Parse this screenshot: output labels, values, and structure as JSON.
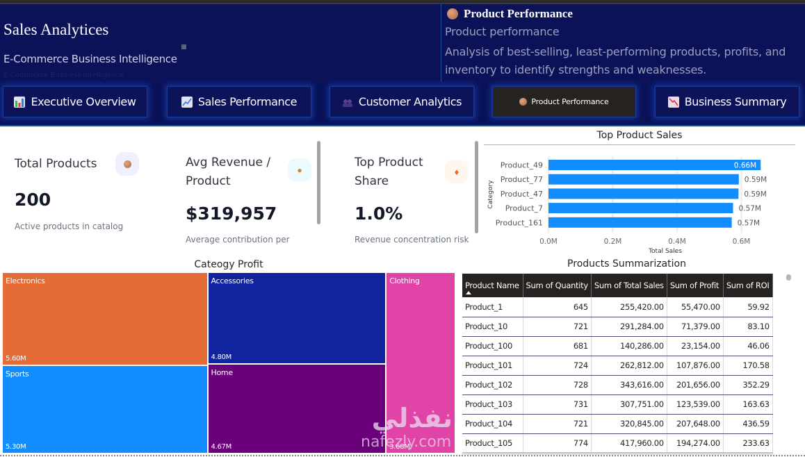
{
  "header": {
    "title": "Sales Analytices",
    "subtitle": "E-Commerce Business Intelligence",
    "ghost_subtitle": "E-Commerce Business Intelligence",
    "page_info": {
      "icon": "package-icon",
      "title": "Product Performance",
      "subtitle": "Product performance",
      "description": "Analysis of best-selling, least-performing products, profits, and inventory to identify strengths and weaknesses."
    }
  },
  "nav": {
    "tabs": [
      {
        "label": "Executive Overview",
        "icon": "bar-chart-icon",
        "active": false
      },
      {
        "label": "Sales Performance",
        "icon": "trend-up-icon",
        "active": false
      },
      {
        "label": "Customer Analytics",
        "icon": "users-icon",
        "active": false
      },
      {
        "label": "Product Performance",
        "icon": "package-icon",
        "active": true
      },
      {
        "label": "Business Summary",
        "icon": "trend-down-icon",
        "active": false
      }
    ]
  },
  "kpis": [
    {
      "label": "Total Products",
      "value": "200",
      "caption": "Active products in catalog",
      "icon": "package-icon"
    },
    {
      "label": "Avg Revenue / Product",
      "value": "$319,957",
      "caption": "Average contribution per",
      "icon": "money-bag-icon"
    },
    {
      "label": "Top Product Share",
      "value": "1.0%",
      "caption": "Revenue concentration risk",
      "icon": "fire-icon"
    }
  ],
  "chart_data": [
    {
      "type": "bar",
      "orientation": "horizontal",
      "title": "Top Product Sales",
      "xlabel": "Total Sales",
      "ylabel": "Category",
      "categories": [
        "Product_49",
        "Product_77",
        "Product_47",
        "Product_7",
        "Product_161"
      ],
      "values": [
        660000,
        592000,
        591000,
        574000,
        570000
      ],
      "data_labels": [
        "0.66M",
        "0.59M",
        "0.59M",
        "0.57M",
        "0.57M"
      ],
      "xlim": [
        0,
        700000
      ],
      "x_ticks": [
        0,
        200000,
        400000,
        600000
      ],
      "x_tick_labels": [
        "0.0M",
        "0.2M",
        "0.4M",
        "0.6M"
      ],
      "grid": true,
      "color": "#118DFF"
    },
    {
      "type": "treemap",
      "title": "Cateogy Profit",
      "categories": [
        "Electronics",
        "Sports",
        "Accessories",
        "Home",
        "Clothing"
      ],
      "values": [
        5600000,
        5300000,
        4800000,
        4670000,
        3680000
      ],
      "data_labels": [
        "5.60M",
        "5.30M",
        "4.80M",
        "4.67M",
        "3.68M"
      ],
      "colors": [
        "#E66C37",
        "#118DFF",
        "#12239E",
        "#6B007B",
        "#E044A7"
      ]
    }
  ],
  "table": {
    "title": "Products Summarization",
    "columns": [
      "Product Name",
      "Sum of Quantity",
      "Sum of Total Sales",
      "Sum of Profit",
      "Sum of ROI"
    ],
    "sorted_column": "Product Name",
    "rows": [
      [
        "Product_1",
        "645",
        "255,420.00",
        "55,470.00",
        "59.92"
      ],
      [
        "Product_10",
        "721",
        "291,284.00",
        "71,379.00",
        "83.10"
      ],
      [
        "Product_100",
        "681",
        "140,286.00",
        "23,154.00",
        "46.06"
      ],
      [
        "Product_101",
        "724",
        "262,812.00",
        "107,876.00",
        "170.58"
      ],
      [
        "Product_102",
        "728",
        "343,616.00",
        "201,656.00",
        "352.29"
      ],
      [
        "Product_103",
        "731",
        "307,751.00",
        "123,539.00",
        "163.63"
      ],
      [
        "Product_104",
        "721",
        "320,845.00",
        "207,648.00",
        "436.59"
      ],
      [
        "Product_105",
        "774",
        "417,960.00",
        "194,274.00",
        "233.63"
      ]
    ]
  },
  "watermark": {
    "arabic": "نفذلي",
    "latin": "nafezly.com"
  }
}
